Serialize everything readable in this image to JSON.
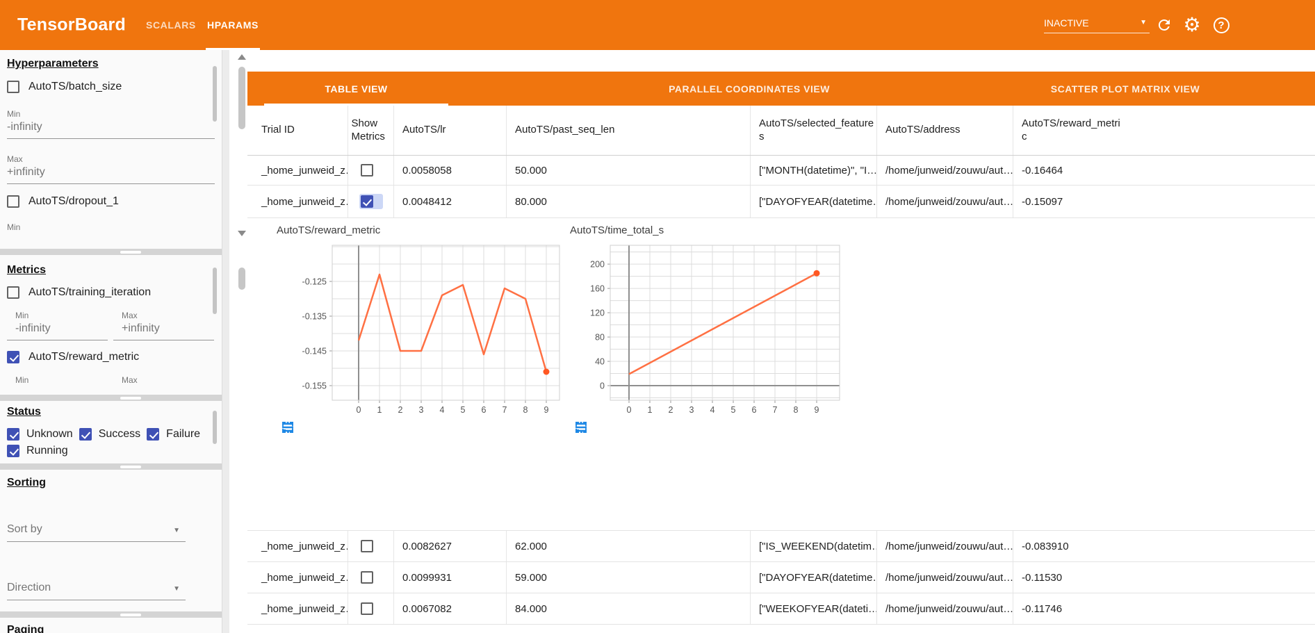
{
  "topbar": {
    "title": "TensorBoard",
    "nav_scalars": "SCALARS",
    "nav_hparams": "HPARAMS",
    "run_status": "INACTIVE",
    "icons": [
      "reload-icon",
      "gear-icon",
      "help-icon"
    ]
  },
  "view_tabs": {
    "table": "TABLE VIEW",
    "parallel": "PARALLEL COORDINATES VIEW",
    "scatter": "SCATTER PLOT MATRIX VIEW"
  },
  "sidebar": {
    "hparams": {
      "title": "Hyperparameters",
      "items": [
        {
          "label": "AutoTS/batch_size",
          "checked": false
        },
        {
          "label": "AutoTS/dropout_1",
          "checked": false
        }
      ],
      "min_label": "Min",
      "max_label": "Max",
      "min_value": "-infinity",
      "max_value": "+infinity"
    },
    "metrics": {
      "title": "Metrics",
      "items": [
        {
          "label": "AutoTS/training_iteration",
          "checked": false
        },
        {
          "label": "AutoTS/reward_metric",
          "checked": true
        }
      ],
      "min_label": "Min",
      "max_label": "Max",
      "min_value": "-infinity",
      "max_value": "+infinity"
    },
    "status": {
      "title": "Status",
      "options": [
        {
          "label": "Unknown",
          "checked": true
        },
        {
          "label": "Success",
          "checked": true
        },
        {
          "label": "Failure",
          "checked": true
        },
        {
          "label": "Running",
          "checked": true
        }
      ]
    },
    "sorting": {
      "title": "Sorting",
      "sort_by_placeholder": "Sort by",
      "direction_placeholder": "Direction"
    },
    "paging": {
      "title": "Paging"
    }
  },
  "table": {
    "columns": [
      "Trial ID",
      "Show Metrics",
      "AutoTS/lr",
      "AutoTS/past_seq_len",
      "AutoTS/selected_features",
      "AutoTS/address",
      "AutoTS/reward_metric"
    ],
    "rows": [
      {
        "trial_id": "_home_junweid_z…",
        "show_metrics": false,
        "lr": "0.0058058",
        "past_seq_len": "50.000",
        "selected_features": "[\"MONTH(datetime)\", \"I…",
        "address": "/home/junweid/zouwu/aut…",
        "reward_metric": "-0.16464"
      },
      {
        "trial_id": "_home_junweid_z…",
        "show_metrics": true,
        "lr": "0.0048412",
        "past_seq_len": "80.000",
        "selected_features": "[\"DAYOFYEAR(datetime…",
        "address": "/home/junweid/zouwu/aut…",
        "reward_metric": "-0.15097"
      },
      {
        "trial_id": "_home_junweid_z…",
        "show_metrics": false,
        "lr": "0.0082627",
        "past_seq_len": "62.000",
        "selected_features": "[\"IS_WEEKEND(datetim…",
        "address": "/home/junweid/zouwu/aut…",
        "reward_metric": "-0.083910"
      },
      {
        "trial_id": "_home_junweid_z…",
        "show_metrics": false,
        "lr": "0.0099931",
        "past_seq_len": "59.000",
        "selected_features": "[\"DAYOFYEAR(datetime…",
        "address": "/home/junweid/zouwu/aut…",
        "reward_metric": "-0.11530"
      },
      {
        "trial_id": "_home_junweid_z…",
        "show_metrics": false,
        "lr": "0.0067082",
        "past_seq_len": "84.000",
        "selected_features": "[\"WEEKOFYEAR(dateti…",
        "address": "/home/junweid/zouwu/aut…",
        "reward_metric": "-0.11746"
      }
    ]
  },
  "chart_data": [
    {
      "type": "line",
      "title": "AutoTS/reward_metric",
      "x": [
        0,
        1,
        2,
        3,
        4,
        5,
        6,
        7,
        8,
        9
      ],
      "values": [
        -0.142,
        -0.123,
        -0.145,
        -0.145,
        -0.129,
        -0.126,
        -0.146,
        -0.127,
        -0.13,
        -0.151
      ],
      "xticks": [
        0,
        1,
        2,
        3,
        4,
        5,
        6,
        7,
        8,
        9
      ],
      "yticks": [
        -0.125,
        -0.135,
        -0.145,
        -0.155
      ],
      "ytick_labels": [
        "-0.125",
        "-0.135",
        "-0.145",
        "-0.155"
      ],
      "ylim": [
        -0.1592,
        -0.1146
      ],
      "xlim": [
        0,
        9
      ],
      "ygrid_step": 0.005,
      "grid": true,
      "legend": "none",
      "line_color": "#ff7043",
      "endpoint_dot": true
    },
    {
      "type": "line",
      "title": "AutoTS/time_total_s",
      "x": [
        0,
        9
      ],
      "values": [
        19,
        185
      ],
      "xticks": [
        0,
        1,
        2,
        3,
        4,
        5,
        6,
        7,
        8,
        9
      ],
      "yticks": [
        0,
        40,
        80,
        120,
        160,
        200
      ],
      "ytick_labels": [
        "0",
        "40",
        "80",
        "120",
        "160",
        "200"
      ],
      "ylim": [
        -24,
        231
      ],
      "xlim": [
        0,
        9
      ],
      "ygrid_step": 20,
      "grid": true,
      "legend": "none",
      "line_color": "#ff7043",
      "endpoint_dot": true
    }
  ],
  "chart_toolbar_icons": [
    "maximize-icon",
    "data-lines-icon",
    "marquee-zoom-icon"
  ],
  "colors": {
    "brand_orange": "#f0750e",
    "accent_indigo": "#3f51b5",
    "chart_line": "#ff7043",
    "chart_dot": "#ff5722",
    "tool_icon_blue": "#1e88e5"
  }
}
